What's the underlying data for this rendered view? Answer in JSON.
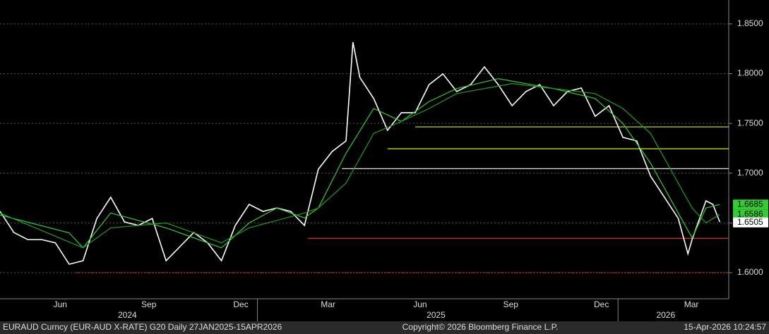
{
  "chart_data": {
    "type": "line",
    "title": "EURAUD Curncy (EUR-AUD X-RATE) G20 Daily 27JAN2025-15APR2026",
    "copyright": "Copyright© 2026 Bloomberg Finance L.P.",
    "timestamp": "15-Apr-2026 10:24:57",
    "xlim": [
      0,
      105.3
    ],
    "xticks": [
      {
        "value": 8.7,
        "label": "Jun"
      },
      {
        "value": 21.5,
        "label": "Sep"
      },
      {
        "value": 34.8,
        "label": "Dec"
      },
      {
        "value": 47.4,
        "label": "Mar"
      },
      {
        "value": 60.7,
        "label": "Jun"
      },
      {
        "value": 73.8,
        "label": "Sep"
      },
      {
        "value": 86.9,
        "label": "Dec"
      },
      {
        "value": 99.9,
        "label": "Mar"
      }
    ],
    "year_labels": [
      {
        "value": 18.4,
        "label": "2024"
      },
      {
        "value": 63.0,
        "label": "2025"
      },
      {
        "value": 96.2,
        "label": "2026"
      }
    ],
    "year_breaks": [
      37.2,
      89.3
    ],
    "ylim": [
      1.5738,
      1.874
    ],
    "yticks": [
      {
        "value": 1.6,
        "label": "1.6000"
      },
      {
        "value": 1.65,
        "label": "1.6500"
      },
      {
        "value": 1.7,
        "label": "1.7000"
      },
      {
        "value": 1.75,
        "label": "1.7500"
      },
      {
        "value": 1.8,
        "label": "1.8000"
      },
      {
        "value": 1.85,
        "label": "1.8500"
      }
    ],
    "grid": true,
    "series": [
      {
        "color": "#ffffff",
        "x": [
          0,
          2,
          4,
          6,
          8,
          10,
          12,
          14,
          16,
          18,
          20,
          22,
          24,
          26,
          28,
          30,
          32,
          34,
          36,
          38,
          40,
          42,
          44,
          46,
          48,
          50,
          51,
          52,
          54,
          56,
          58,
          60,
          62,
          64,
          66,
          68,
          70,
          72,
          74,
          76,
          78,
          80,
          82,
          84,
          86,
          88,
          90,
          92,
          94,
          96,
          98,
          99.4,
          100,
          102,
          103,
          104
        ],
        "values": [
          1.6616,
          1.6404,
          1.6333,
          1.6333,
          1.63,
          1.6085,
          1.612,
          1.6545,
          1.6758,
          1.651,
          1.6475,
          1.6545,
          1.612,
          1.6262,
          1.6404,
          1.63,
          1.612,
          1.6475,
          1.6687,
          1.6616,
          1.665,
          1.6616,
          1.6475,
          1.704,
          1.7218,
          1.7324,
          1.8316,
          1.7962,
          1.775,
          1.743,
          1.7608,
          1.7608,
          1.789,
          1.7997,
          1.782,
          1.789,
          1.8068,
          1.789,
          1.7678,
          1.782,
          1.789,
          1.7678,
          1.782,
          1.7856,
          1.7572,
          1.7678,
          1.736,
          1.7324,
          1.697,
          1.6758,
          1.6545,
          1.619,
          1.6333,
          1.6722,
          1.6687,
          1.651
        ]
      },
      {
        "color": "#33cc33",
        "x": [
          0,
          10,
          12,
          16,
          24,
          32,
          36,
          40,
          44,
          46,
          50,
          54,
          58,
          62,
          66,
          72,
          80,
          86,
          90,
          94,
          98,
          100,
          102,
          104
        ],
        "values": [
          1.658,
          1.64,
          1.625,
          1.66,
          1.645,
          1.625,
          1.65,
          1.665,
          1.655,
          1.665,
          1.72,
          1.765,
          1.752,
          1.772,
          1.785,
          1.795,
          1.785,
          1.775,
          1.75,
          1.71,
          1.66,
          1.635,
          1.665,
          1.6685
        ]
      },
      {
        "color": "#1f9e1f",
        "x": [
          0,
          12,
          16,
          24,
          32,
          36,
          44,
          46,
          50,
          54,
          58,
          62,
          66,
          74,
          86,
          90,
          94,
          98,
          100,
          102,
          104
        ],
        "values": [
          1.66,
          1.625,
          1.645,
          1.65,
          1.63,
          1.645,
          1.66,
          1.665,
          1.69,
          1.74,
          1.752,
          1.765,
          1.78,
          1.79,
          1.78,
          1.765,
          1.74,
          1.69,
          1.665,
          1.65,
          1.6586
        ]
      }
    ],
    "levels": [
      {
        "value": 1.7465,
        "start": 60,
        "color": "#e6e600"
      },
      {
        "value": 1.7245,
        "start": 56,
        "color": "#e6e600"
      },
      {
        "value": 1.7045,
        "start": 49.4,
        "color": "#dddddd"
      },
      {
        "value": 1.6345,
        "start": 44.5,
        "color": "#e03030"
      },
      {
        "value": 1.6,
        "start": 11,
        "color": "#e03030"
      }
    ],
    "end_labels": [
      {
        "value": 1.6685,
        "label": "1.6685",
        "color": "#33cc33"
      },
      {
        "value": 1.6586,
        "label": "1.6586",
        "color": "#33cc33"
      },
      {
        "value": 1.6505,
        "label": "1.6505",
        "color": "#ffffff"
      }
    ]
  }
}
